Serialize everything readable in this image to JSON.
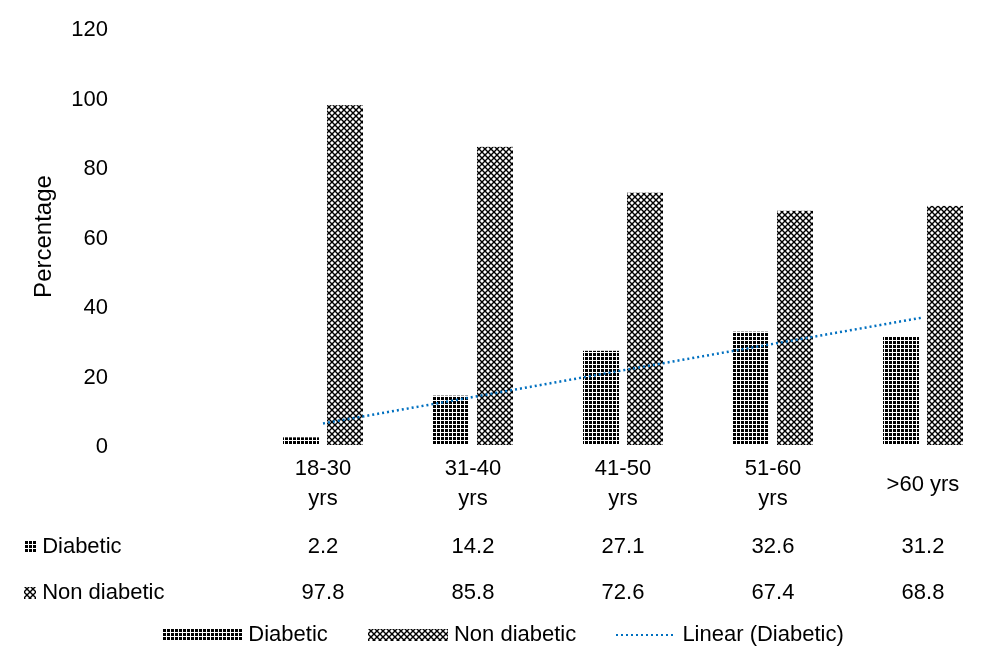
{
  "chart_data": {
    "type": "bar",
    "ylabel": "Percentage",
    "categories": [
      "18-30 yrs",
      "31-40 yrs",
      "41-50 yrs",
      "51-60 yrs",
      ">60 yrs"
    ],
    "series": [
      {
        "name": "Diabetic",
        "color": "#000000",
        "values": [
          2.2,
          14.2,
          27.1,
          32.6,
          31.2
        ],
        "value_labels": [
          "2.2",
          "14.2",
          "27.1",
          "32.6",
          "31.2"
        ]
      },
      {
        "name": "Non diabetic",
        "color": "#000000",
        "values": [
          97.8,
          85.8,
          72.6,
          67.4,
          68.8
        ],
        "value_labels": [
          "97.8",
          "85.8",
          "72.6",
          "67.4",
          "68.8"
        ]
      },
      {
        "name": "Linear (Diabetic)",
        "type": "line",
        "color": "#0070c0",
        "line_style": "dotted",
        "x": [
          "18-30 yrs",
          "31-40 yrs",
          "41-50 yrs",
          "51-60 yrs",
          ">60 yrs"
        ],
        "values": [
          6.2,
          13.8,
          21.5,
          29.1,
          36.7
        ]
      }
    ],
    "ylim": [
      0,
      120
    ],
    "yticks": [
      0,
      20,
      40,
      60,
      80,
      100,
      120
    ],
    "grid": false,
    "legend": "bottom",
    "marker": "none"
  }
}
